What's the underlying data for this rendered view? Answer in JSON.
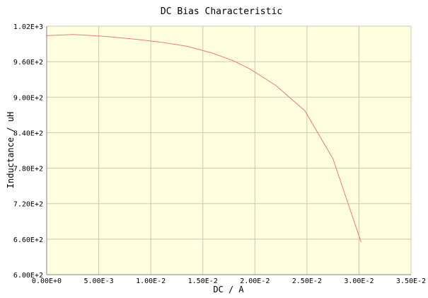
{
  "chart_data": {
    "type": "line",
    "title": "DC Bias Characteristic",
    "xlabel": "DC / A",
    "ylabel": "Inductance / uH",
    "xlim": [
      0,
      0.035
    ],
    "ylim": [
      600,
      1020
    ],
    "x_ticks": [
      0,
      0.005,
      0.01,
      0.015,
      0.02,
      0.025,
      0.03,
      0.035
    ],
    "x_tick_labels": [
      "0.00E+0",
      "5.00E-3",
      "1.00E-2",
      "1.50E-2",
      "2.00E-2",
      "2.50E-2",
      "3.00E-2",
      "3.50E-2"
    ],
    "y_ticks": [
      600,
      660,
      720,
      780,
      840,
      900,
      960,
      1020
    ],
    "y_tick_labels": [
      "6.00E+2",
      "6.60E+2",
      "7.20E+2",
      "7.80E+2",
      "8.40E+2",
      "9.00E+2",
      "9.60E+2",
      "1.02E+3"
    ],
    "grid": true,
    "colors": {
      "plot_bg": "#ffffe0",
      "grid": "#c8c8b4",
      "line": "#f07878",
      "axis": "#808080"
    },
    "series": [
      {
        "x": [
          0,
          0.0025,
          0.0055,
          0.0085,
          0.011,
          0.0135,
          0.016,
          0.018,
          0.0195,
          0.022,
          0.0248,
          0.0275,
          0.0302
        ],
        "values": [
          1004,
          1006,
          1003,
          998,
          993,
          986,
          974,
          961,
          948,
          920,
          877,
          796,
          655
        ]
      }
    ]
  }
}
